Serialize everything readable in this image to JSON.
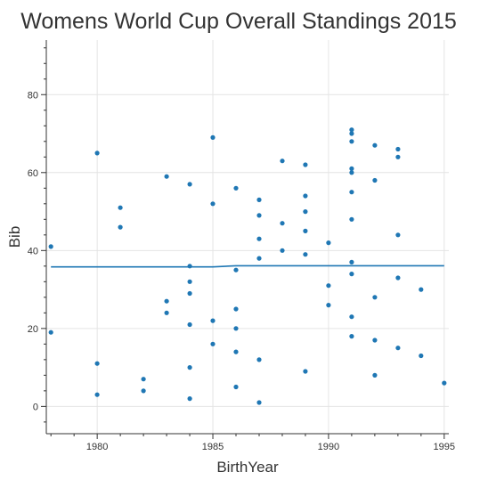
{
  "chart_data": {
    "type": "scatter",
    "title": "Womens World Cup Overall Standings 2015",
    "xlabel": "BirthYear",
    "ylabel": "Bib",
    "xlim": [
      1977.8,
      1995.2
    ],
    "ylim": [
      -7,
      94
    ],
    "x_ticks": [
      1980,
      1985,
      1990,
      1995
    ],
    "y_ticks": [
      0,
      20,
      40,
      60,
      80
    ],
    "grid": true,
    "colors": {
      "points": "#1f77b4",
      "line": "#1f77b4"
    },
    "points": [
      {
        "x": 1978,
        "y": 41
      },
      {
        "x": 1978,
        "y": 19
      },
      {
        "x": 1980,
        "y": 65
      },
      {
        "x": 1980,
        "y": 11
      },
      {
        "x": 1980,
        "y": 3
      },
      {
        "x": 1981,
        "y": 51
      },
      {
        "x": 1981,
        "y": 46
      },
      {
        "x": 1982,
        "y": 7
      },
      {
        "x": 1982,
        "y": 4
      },
      {
        "x": 1983,
        "y": 59
      },
      {
        "x": 1983,
        "y": 27
      },
      {
        "x": 1983,
        "y": 24
      },
      {
        "x": 1984,
        "y": 57
      },
      {
        "x": 1984,
        "y": 36
      },
      {
        "x": 1984,
        "y": 32
      },
      {
        "x": 1984,
        "y": 29
      },
      {
        "x": 1984,
        "y": 21
      },
      {
        "x": 1984,
        "y": 10
      },
      {
        "x": 1984,
        "y": 2
      },
      {
        "x": 1985,
        "y": 69
      },
      {
        "x": 1985,
        "y": 52
      },
      {
        "x": 1985,
        "y": 22
      },
      {
        "x": 1985,
        "y": 16
      },
      {
        "x": 1986,
        "y": 56
      },
      {
        "x": 1986,
        "y": 35
      },
      {
        "x": 1986,
        "y": 25
      },
      {
        "x": 1986,
        "y": 20
      },
      {
        "x": 1986,
        "y": 14
      },
      {
        "x": 1986,
        "y": 5
      },
      {
        "x": 1987,
        "y": 53
      },
      {
        "x": 1987,
        "y": 49
      },
      {
        "x": 1987,
        "y": 43
      },
      {
        "x": 1987,
        "y": 38
      },
      {
        "x": 1987,
        "y": 12
      },
      {
        "x": 1987,
        "y": 1
      },
      {
        "x": 1988,
        "y": 63
      },
      {
        "x": 1988,
        "y": 47
      },
      {
        "x": 1988,
        "y": 40
      },
      {
        "x": 1989,
        "y": 62
      },
      {
        "x": 1989,
        "y": 54
      },
      {
        "x": 1989,
        "y": 50
      },
      {
        "x": 1989,
        "y": 45
      },
      {
        "x": 1989,
        "y": 39
      },
      {
        "x": 1989,
        "y": 9
      },
      {
        "x": 1990,
        "y": 42
      },
      {
        "x": 1990,
        "y": 31
      },
      {
        "x": 1990,
        "y": 26
      },
      {
        "x": 1991,
        "y": 71
      },
      {
        "x": 1991,
        "y": 70
      },
      {
        "x": 1991,
        "y": 68
      },
      {
        "x": 1991,
        "y": 61
      },
      {
        "x": 1991,
        "y": 60
      },
      {
        "x": 1991,
        "y": 55
      },
      {
        "x": 1991,
        "y": 48
      },
      {
        "x": 1991,
        "y": 37
      },
      {
        "x": 1991,
        "y": 34
      },
      {
        "x": 1991,
        "y": 23
      },
      {
        "x": 1991,
        "y": 18
      },
      {
        "x": 1992,
        "y": 67
      },
      {
        "x": 1992,
        "y": 58
      },
      {
        "x": 1992,
        "y": 28
      },
      {
        "x": 1992,
        "y": 17
      },
      {
        "x": 1992,
        "y": 8
      },
      {
        "x": 1993,
        "y": 66
      },
      {
        "x": 1993,
        "y": 64
      },
      {
        "x": 1993,
        "y": 44
      },
      {
        "x": 1993,
        "y": 33
      },
      {
        "x": 1993,
        "y": 15
      },
      {
        "x": 1994,
        "y": 30
      },
      {
        "x": 1994,
        "y": 13
      },
      {
        "x": 1995,
        "y": 6
      }
    ],
    "trend_line": [
      {
        "x": 1978,
        "y": 35.8
      },
      {
        "x": 1985,
        "y": 35.8
      },
      {
        "x": 1986,
        "y": 36.1
      },
      {
        "x": 1995,
        "y": 36.1
      }
    ]
  }
}
